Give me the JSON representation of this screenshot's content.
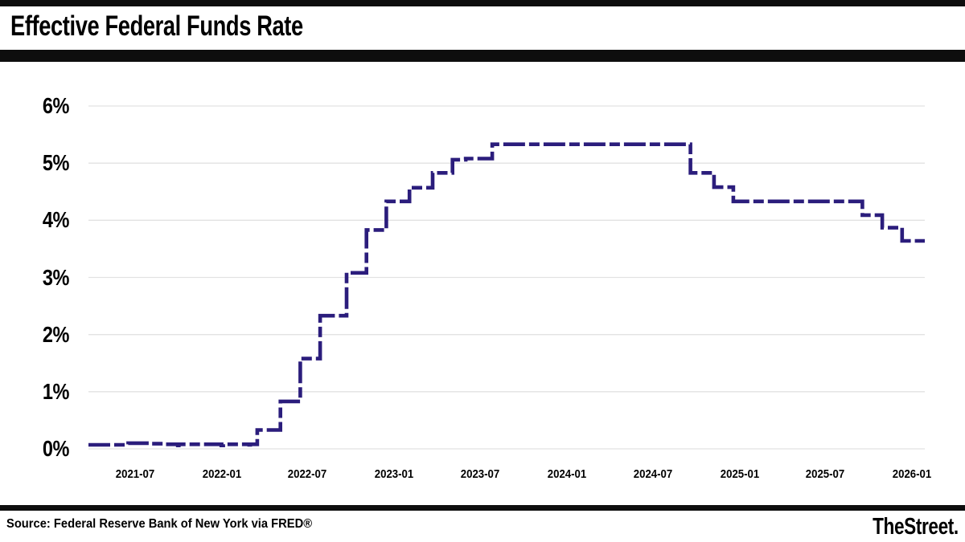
{
  "header": {
    "title": "Effective Federal Funds Rate"
  },
  "footer": {
    "source": "Source: Federal Reserve Bank of New York via FRED®",
    "brand": "TheStreet."
  },
  "chart_data": {
    "type": "line",
    "subtype": "step-dashed",
    "title": "Effective Federal Funds Rate",
    "xlabel": "",
    "ylabel": "",
    "grid": "horizontal-only",
    "legend": "none",
    "line_color": "#2b1d7c",
    "gridline_color": "#e2e2e2",
    "ylim": [
      0,
      6
    ],
    "ytick_values": [
      0,
      1,
      2,
      3,
      4,
      5,
      6
    ],
    "ytick_labels": [
      "0%",
      "1%",
      "2%",
      "3%",
      "4%",
      "5%",
      "6%"
    ],
    "x_domain": [
      "2021-03-25",
      "2026-01-28"
    ],
    "xticks": [
      {
        "date": "2021-07-01",
        "label": "2021-07"
      },
      {
        "date": "2022-01-01",
        "label": "2022-01"
      },
      {
        "date": "2022-07-01",
        "label": "2022-07"
      },
      {
        "date": "2023-01-01",
        "label": "2023-01"
      },
      {
        "date": "2023-07-01",
        "label": "2023-07"
      },
      {
        "date": "2024-01-01",
        "label": "2024-01"
      },
      {
        "date": "2024-07-01",
        "label": "2024-07"
      },
      {
        "date": "2025-01-01",
        "label": "2025-01"
      },
      {
        "date": "2025-07-01",
        "label": "2025-07"
      },
      {
        "date": "2026-01-01",
        "label": "2026-01"
      }
    ],
    "series": [
      {
        "name": "Effective Federal Funds Rate (%)",
        "step_points": [
          [
            "2021-03-25",
            0.07
          ],
          [
            "2021-06-17",
            0.1
          ],
          [
            "2021-08-02",
            0.09
          ],
          [
            "2021-09-01",
            0.08
          ],
          [
            "2021-09-30",
            0.06
          ],
          [
            "2021-10-02",
            0.08
          ],
          [
            "2021-12-31",
            0.06
          ],
          [
            "2022-01-04",
            0.08
          ],
          [
            "2022-02-28",
            0.07
          ],
          [
            "2022-03-02",
            0.08
          ],
          [
            "2022-03-17",
            0.33
          ],
          [
            "2022-05-05",
            0.83
          ],
          [
            "2022-06-16",
            1.58
          ],
          [
            "2022-07-28",
            2.33
          ],
          [
            "2022-09-22",
            3.08
          ],
          [
            "2022-11-03",
            3.83
          ],
          [
            "2022-12-15",
            4.33
          ],
          [
            "2023-02-02",
            4.57
          ],
          [
            "2023-03-23",
            4.83
          ],
          [
            "2023-05-04",
            5.06
          ],
          [
            "2023-06-01",
            5.08
          ],
          [
            "2023-07-27",
            5.33
          ],
          [
            "2024-09-19",
            4.83
          ],
          [
            "2024-11-08",
            4.58
          ],
          [
            "2024-12-19",
            4.33
          ],
          [
            "2025-09-18",
            4.09
          ],
          [
            "2025-10-30",
            3.87
          ],
          [
            "2025-12-11",
            3.64
          ]
        ],
        "end_date": "2026-01-28"
      }
    ]
  }
}
